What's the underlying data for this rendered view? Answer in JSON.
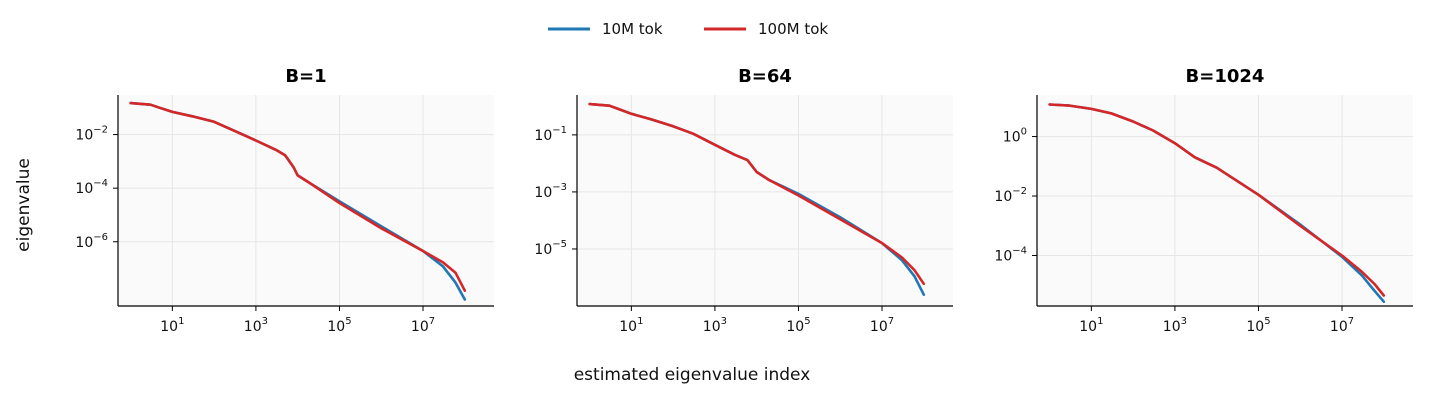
{
  "figure": {
    "xlabel": "estimated eigenvalue index",
    "ylabel": "eigenvalue"
  },
  "legend": [
    {
      "label": "10M tok",
      "color": "#1f77b4"
    },
    {
      "label": "100M tok",
      "color": "#d62728"
    }
  ],
  "chart_data": [
    {
      "type": "line",
      "title": "B=1",
      "x_scale": "log",
      "y_scale": "log",
      "xlim": [
        0.5,
        500000000
      ],
      "ylim": [
        4e-09,
        0.3
      ],
      "x_ticks": [
        {
          "base": "10",
          "exp": "1",
          "value": 10
        },
        {
          "base": "10",
          "exp": "3",
          "value": 1000
        },
        {
          "base": "10",
          "exp": "5",
          "value": 100000
        },
        {
          "base": "10",
          "exp": "7",
          "value": 10000000
        }
      ],
      "y_ticks": [
        {
          "base": "10",
          "exp": "−2",
          "value": 0.01
        },
        {
          "base": "10",
          "exp": "−4",
          "value": 0.0001
        },
        {
          "base": "10",
          "exp": "−6",
          "value": 1e-06
        }
      ],
      "grid": true,
      "series": [
        {
          "name": "10M tok",
          "color": "#1f77b4",
          "x": [
            1,
            3,
            5,
            10,
            30,
            100,
            300,
            1000,
            3000,
            5000,
            8000,
            10000,
            20000,
            100000,
            1000000,
            10000000,
            30000000,
            60000000,
            100000000
          ],
          "y": [
            0.15,
            0.13,
            0.1,
            0.07,
            0.048,
            0.03,
            0.014,
            0.006,
            0.0027,
            0.0017,
            0.0006,
            0.0003,
            0.00015,
            3.2e-05,
            3.8e-06,
            4.5e-07,
            1.2e-07,
            3e-08,
            7e-09
          ]
        },
        {
          "name": "100M tok",
          "color": "#d62728",
          "x": [
            1,
            3,
            5,
            10,
            30,
            100,
            300,
            1000,
            3000,
            5000,
            8000,
            10000,
            20000,
            100000,
            1000000,
            10000000,
            30000000,
            60000000,
            100000000
          ],
          "y": [
            0.15,
            0.13,
            0.1,
            0.07,
            0.048,
            0.03,
            0.014,
            0.006,
            0.0027,
            0.0017,
            0.0006,
            0.0003,
            0.00015,
            2.8e-05,
            3.2e-06,
            4.5e-07,
            1.7e-07,
            7e-08,
            1.5e-08
          ]
        }
      ]
    },
    {
      "type": "line",
      "title": "B=64",
      "x_scale": "log",
      "y_scale": "log",
      "xlim": [
        0.5,
        500000000
      ],
      "ylim": [
        1e-07,
        2.5
      ],
      "x_ticks": [
        {
          "base": "10",
          "exp": "1",
          "value": 10
        },
        {
          "base": "10",
          "exp": "3",
          "value": 1000
        },
        {
          "base": "10",
          "exp": "5",
          "value": 100000
        },
        {
          "base": "10",
          "exp": "7",
          "value": 10000000
        }
      ],
      "y_ticks": [
        {
          "base": "10",
          "exp": "−1",
          "value": 0.1
        },
        {
          "base": "10",
          "exp": "−3",
          "value": 0.001
        },
        {
          "base": "10",
          "exp": "−5",
          "value": 1e-05
        }
      ],
      "grid": true,
      "series": [
        {
          "name": "10M tok",
          "color": "#1f77b4",
          "x": [
            1,
            3,
            5,
            10,
            30,
            100,
            300,
            1000,
            3000,
            6000,
            10000,
            20000,
            100000,
            1000000,
            10000000,
            30000000,
            60000000,
            100000000
          ],
          "y": [
            1.2,
            1.05,
            0.8,
            0.55,
            0.35,
            0.2,
            0.11,
            0.045,
            0.02,
            0.013,
            0.005,
            0.0026,
            0.00085,
            0.00013,
            1.6e-05,
            4e-06,
            1.1e-06,
            2.5e-07
          ]
        },
        {
          "name": "100M tok",
          "color": "#d62728",
          "x": [
            1,
            3,
            5,
            10,
            30,
            100,
            300,
            1000,
            3000,
            6000,
            10000,
            20000,
            100000,
            1000000,
            10000000,
            30000000,
            60000000,
            100000000
          ],
          "y": [
            1.2,
            1.05,
            0.8,
            0.55,
            0.35,
            0.2,
            0.11,
            0.045,
            0.02,
            0.013,
            0.005,
            0.0026,
            0.00075,
            0.00011,
            1.6e-05,
            5e-06,
            1.8e-06,
            6e-07
          ]
        }
      ]
    },
    {
      "type": "line",
      "title": "B=1024",
      "x_scale": "log",
      "y_scale": "log",
      "xlim": [
        0.5,
        500000000
      ],
      "ylim": [
        2e-06,
        25
      ],
      "x_ticks": [
        {
          "base": "10",
          "exp": "1",
          "value": 10
        },
        {
          "base": "10",
          "exp": "3",
          "value": 1000
        },
        {
          "base": "10",
          "exp": "5",
          "value": 100000
        },
        {
          "base": "10",
          "exp": "7",
          "value": 10000000
        }
      ],
      "y_ticks": [
        {
          "base": "10",
          "exp": "0",
          "value": 1
        },
        {
          "base": "10",
          "exp": "−2",
          "value": 0.01
        },
        {
          "base": "10",
          "exp": "−4",
          "value": 0.0001
        }
      ],
      "grid": true,
      "series": [
        {
          "name": "10M tok",
          "color": "#1f77b4",
          "x": [
            1,
            3,
            10,
            30,
            100,
            300,
            1000,
            3000,
            10000,
            100000,
            1000000,
            10000000,
            30000000,
            60000000,
            100000000
          ],
          "y": [
            12,
            11,
            8.5,
            6,
            3.2,
            1.6,
            0.6,
            0.2,
            0.09,
            0.011,
            0.0011,
            9e-05,
            2.1e-05,
            6.5e-06,
            2.8e-06
          ]
        },
        {
          "name": "100M tok",
          "color": "#d62728",
          "x": [
            1,
            3,
            10,
            30,
            100,
            300,
            1000,
            3000,
            10000,
            100000,
            1000000,
            10000000,
            30000000,
            60000000,
            100000000
          ],
          "y": [
            12,
            11,
            8.5,
            6,
            3.2,
            1.6,
            0.6,
            0.2,
            0.09,
            0.011,
            0.001,
            0.0001,
            2.8e-05,
            1.1e-05,
            4.5e-06
          ]
        }
      ]
    }
  ]
}
